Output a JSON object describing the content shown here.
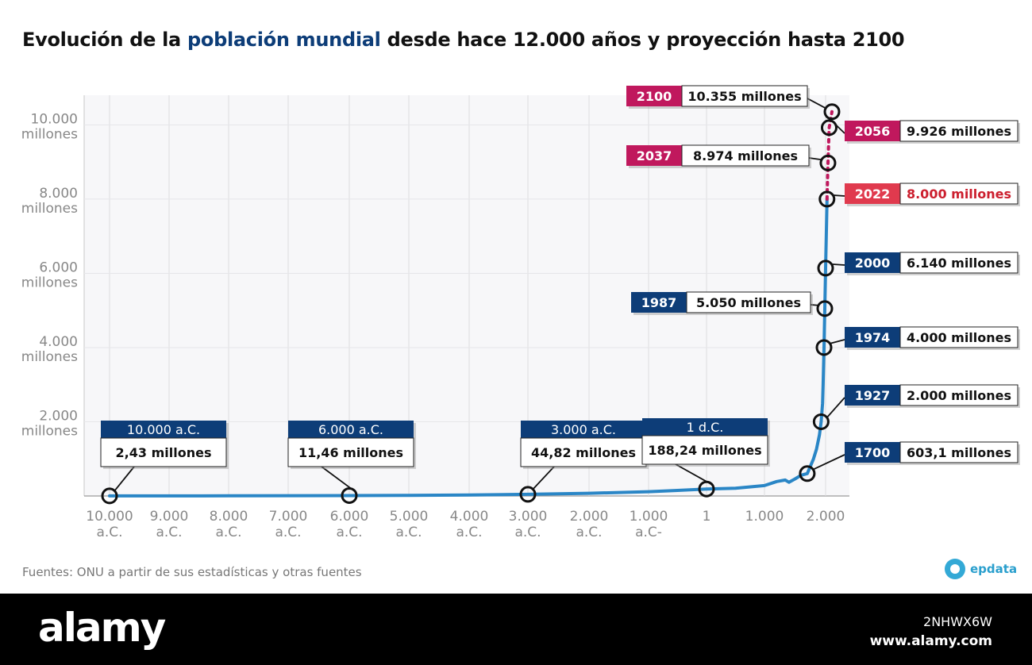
{
  "title": {
    "part1": "Evolución de la ",
    "highlight": "población mundial",
    "part2": " desde hace 12.000 años y proyección hasta 2100"
  },
  "source": "Fuentes: ONU a partir de sus estadísticas y otras fuentes",
  "brand": "epdata",
  "watermark": {
    "logo": "alamy",
    "code": "2NHWX6W",
    "url": "www.alamy.com"
  },
  "colors": {
    "line": "#2a86c6",
    "projection": "#c0185d",
    "label_historic": "#0d3d78",
    "label_projection": "#c0185d",
    "label_current": "#e03a4e",
    "current_text": "#cc1f2e"
  },
  "chart_data": {
    "type": "line",
    "y_ticks": [
      {
        "value": 2000,
        "lines": [
          "2.000",
          "millones"
        ]
      },
      {
        "value": 4000,
        "lines": [
          "4.000",
          "millones"
        ]
      },
      {
        "value": 6000,
        "lines": [
          "6.000",
          "millones"
        ]
      },
      {
        "value": 8000,
        "lines": [
          "8.000",
          "millones"
        ]
      },
      {
        "value": 10000,
        "lines": [
          "10.000",
          "millones"
        ]
      }
    ],
    "x_ticks": [
      {
        "value": -10000,
        "lines": [
          "10.000",
          "a.C."
        ]
      },
      {
        "value": -9000,
        "lines": [
          "9.000",
          "a.C."
        ]
      },
      {
        "value": -8000,
        "lines": [
          "8.000",
          "a.C."
        ]
      },
      {
        "value": -7000,
        "lines": [
          "7.000",
          "a.C."
        ]
      },
      {
        "value": -6000,
        "lines": [
          "6.000",
          "a.C."
        ]
      },
      {
        "value": -5000,
        "lines": [
          "5.000",
          "a.C."
        ]
      },
      {
        "value": -4000,
        "lines": [
          "4.000",
          "a.C."
        ]
      },
      {
        "value": -3000,
        "lines": [
          "3.000",
          "a.C."
        ]
      },
      {
        "value": -2000,
        "lines": [
          "2.000",
          "a.C."
        ]
      },
      {
        "value": -1000,
        "lines": [
          "1.000",
          "a.C-"
        ]
      },
      {
        "value": 1,
        "lines": [
          "1"
        ]
      },
      {
        "value": 1000,
        "lines": [
          "1.000"
        ]
      },
      {
        "value": 2000,
        "lines": [
          "2.000"
        ]
      }
    ],
    "ylim": [
      0,
      10800
    ],
    "series": [
      {
        "kind": "historic",
        "points": [
          [
            -10000,
            2.43
          ],
          [
            -8000,
            5
          ],
          [
            -6000,
            11.46
          ],
          [
            -5000,
            18
          ],
          [
            -4000,
            28
          ],
          [
            -3000,
            44.82
          ],
          [
            -2000,
            72
          ],
          [
            -1000,
            115
          ],
          [
            -500,
            150
          ],
          [
            1,
            188.24
          ],
          [
            500,
            210
          ],
          [
            1000,
            280
          ],
          [
            1200,
            390
          ],
          [
            1340,
            430
          ],
          [
            1400,
            370
          ],
          [
            1500,
            460
          ],
          [
            1600,
            560
          ],
          [
            1700,
            603.1
          ],
          [
            1800,
            990
          ],
          [
            1850,
            1260
          ],
          [
            1900,
            1650
          ],
          [
            1927,
            2000
          ],
          [
            1950,
            2500
          ],
          [
            1960,
            3020
          ],
          [
            1974,
            4000
          ],
          [
            1987,
            5050
          ],
          [
            2000,
            6140
          ],
          [
            2010,
            6950
          ],
          [
            2022,
            8000
          ]
        ]
      },
      {
        "kind": "projection",
        "points": [
          [
            2022,
            8000
          ],
          [
            2037,
            8974
          ],
          [
            2056,
            9926
          ],
          [
            2100,
            10355
          ]
        ]
      }
    ],
    "annotations": [
      {
        "x": -10000,
        "y": 2.43,
        "top": "10.000 a.C.",
        "value": "2,43 millones",
        "style": "historic-box"
      },
      {
        "x": -6000,
        "y": 11.46,
        "top": "6.000 a.C.",
        "value": "11,46 millones",
        "style": "historic-box"
      },
      {
        "x": -3000,
        "y": 44.82,
        "top": "3.000 a.C.",
        "value": "44,82 millones",
        "style": "historic-box"
      },
      {
        "x": 1,
        "y": 188.24,
        "top": "1 d.C.",
        "value": "188,24 millones",
        "style": "historic-box"
      },
      {
        "x": 1700,
        "y": 603.1,
        "year": "1700",
        "value": "603,1 millones",
        "style": "historic",
        "side": "right"
      },
      {
        "x": 1927,
        "y": 2000,
        "year": "1927",
        "value": "2.000 millones",
        "style": "historic",
        "side": "right"
      },
      {
        "x": 1974,
        "y": 4000,
        "year": "1974",
        "value": "4.000 millones",
        "style": "historic",
        "side": "right"
      },
      {
        "x": 1987,
        "y": 5050,
        "year": "1987",
        "value": "5.050 millones",
        "style": "historic",
        "side": "left"
      },
      {
        "x": 2000,
        "y": 6140,
        "year": "2000",
        "value": "6.140 millones",
        "style": "historic",
        "side": "right"
      },
      {
        "x": 2022,
        "y": 8000,
        "year": "2022",
        "value": "8.000 millones",
        "style": "current",
        "side": "right"
      },
      {
        "x": 2037,
        "y": 8974,
        "year": "2037",
        "value": "8.974 millones",
        "style": "projection",
        "side": "left"
      },
      {
        "x": 2056,
        "y": 9926,
        "year": "2056",
        "value": "9.926 millones",
        "style": "projection",
        "side": "right"
      },
      {
        "x": 2100,
        "y": 10355,
        "year": "2100",
        "value": "10.355 millones",
        "style": "projection",
        "side": "left"
      }
    ]
  }
}
